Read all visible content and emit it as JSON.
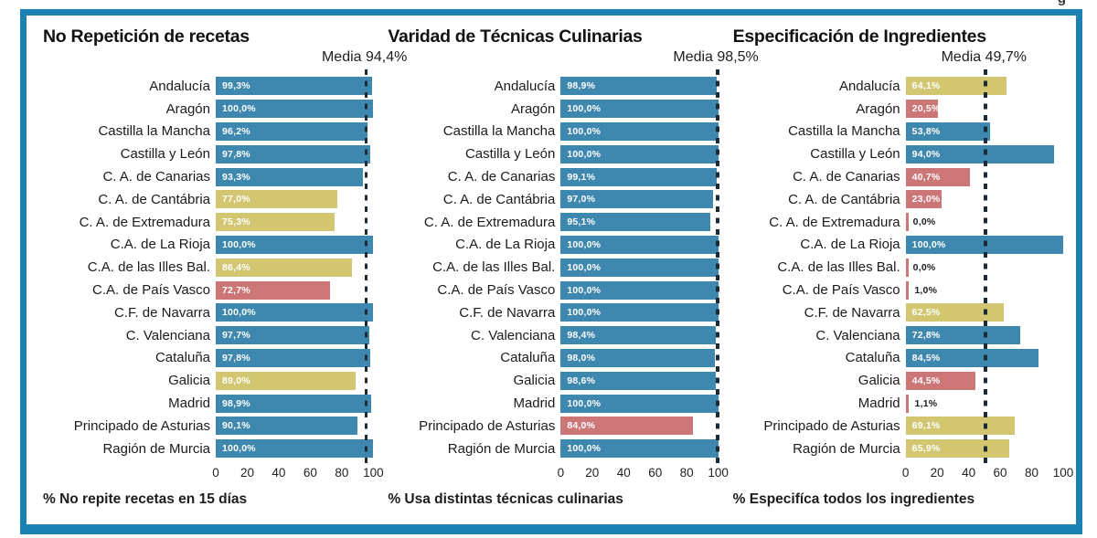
{
  "fragment": "g",
  "colors": {
    "frame_blue": "#1a81b2",
    "bar_blue": "#3e87ae",
    "bar_yellow": "#d2c671",
    "bar_red": "#cd7678",
    "dash_dark": "#1d2b36",
    "text_dark": "#1b1b1b"
  },
  "label_inside_threshold": 10,
  "chart_data": [
    {
      "type": "bar",
      "orientation": "horizontal",
      "title": "No Repetición de recetas",
      "media_label": "Media 94,4%",
      "media_value": 94.4,
      "xlabel": "% No repite recetas en 15 días",
      "xlim": [
        0,
        100
      ],
      "xticks": [
        0,
        20,
        40,
        60,
        80,
        100
      ],
      "grid": false,
      "categories": [
        "Andalucía",
        "Aragón",
        "Castilla la Mancha",
        "Castilla y León",
        "C. A. de Canarias",
        "C. A. de Cantábria",
        "C. A. de Extremadura",
        "C.A. de La Rioja",
        "C.A. de las Illes Bal.",
        "C.A. de País Vasco",
        "C.F. de Navarra",
        "C. Valenciana",
        "Cataluña",
        "Galicia",
        "Madrid",
        "Principado de Asturias",
        "Ragión de Murcia"
      ],
      "values": [
        99.3,
        100.0,
        96.2,
        97.8,
        93.3,
        77.0,
        75.3,
        100.0,
        86.4,
        72.7,
        100.0,
        97.7,
        97.8,
        89.0,
        98.9,
        90.1,
        100.0
      ],
      "value_labels": [
        "99,3%",
        "100,0%",
        "96,2%",
        "97,8%",
        "93,3%",
        "77,0%",
        "75,3%",
        "100,0%",
        "86,4%",
        "72,7%",
        "100,0%",
        "97,7%",
        "97,8%",
        "89,0%",
        "98,9%",
        "90,1%",
        "100,0%"
      ],
      "bar_colors": [
        "blue",
        "blue",
        "blue",
        "blue",
        "blue",
        "yellow",
        "yellow",
        "blue",
        "yellow",
        "red",
        "blue",
        "blue",
        "blue",
        "yellow",
        "blue",
        "blue",
        "blue"
      ]
    },
    {
      "type": "bar",
      "orientation": "horizontal",
      "title": "Varidad de Técnicas Culinarias",
      "media_label": "Media 98,5%",
      "media_value": 98.5,
      "xlabel": "% Usa distintas técnicas culinarias",
      "xlim": [
        0,
        100
      ],
      "xticks": [
        0,
        20,
        40,
        60,
        80,
        100
      ],
      "grid": false,
      "categories": [
        "Andalucía",
        "Aragón",
        "Castilla la Mancha",
        "Castilla y León",
        "C. A. de Canarias",
        "C. A. de Cantábria",
        "C. A. de Extremadura",
        "C.A. de La Rioja",
        "C.A. de las Illes Bal.",
        "C.A. de País Vasco",
        "C.F. de Navarra",
        "C. Valenciana",
        "Cataluña",
        "Galicia",
        "Madrid",
        "Principado de Asturias",
        "Ragión de Murcia"
      ],
      "values": [
        98.9,
        100.0,
        100.0,
        100.0,
        99.1,
        97.0,
        95.1,
        100.0,
        100.0,
        100.0,
        100.0,
        98.4,
        98.0,
        98.6,
        100.0,
        84.0,
        100.0
      ],
      "value_labels": [
        "98,9%",
        "100,0%",
        "100,0%",
        "100,0%",
        "99,1%",
        "97,0%",
        "95,1%",
        "100,0%",
        "100,0%",
        "100,0%",
        "100,0%",
        "98,4%",
        "98,0%",
        "98,6%",
        "100,0%",
        "84,0%",
        "100,0%"
      ],
      "bar_colors": [
        "blue",
        "blue",
        "blue",
        "blue",
        "blue",
        "blue",
        "blue",
        "blue",
        "blue",
        "blue",
        "blue",
        "blue",
        "blue",
        "blue",
        "blue",
        "red",
        "blue"
      ]
    },
    {
      "type": "bar",
      "orientation": "horizontal",
      "title": "Especificación de Ingredientes",
      "media_label": "Media 49,7%",
      "media_value": 49.7,
      "xlabel": "% Especifíca todos los ingredientes",
      "xlim": [
        0,
        100
      ],
      "xticks": [
        0,
        20,
        40,
        60,
        80,
        100
      ],
      "grid": false,
      "categories": [
        "Andalucía",
        "Aragón",
        "Castilla la Mancha",
        "Castilla y León",
        "C. A. de Canarias",
        "C. A. de Cantábria",
        "C. A. de Extremadura",
        "C.A. de La Rioja",
        "C.A. de las Illes Bal.",
        "C.A. de País Vasco",
        "C.F. de Navarra",
        "C. Valenciana",
        "Cataluña",
        "Galicia",
        "Madrid",
        "Principado de Asturias",
        "Ragión de Murcia"
      ],
      "values": [
        64.1,
        20.5,
        53.8,
        94.0,
        40.7,
        23.0,
        0.0,
        100.0,
        0.0,
        1.0,
        62.5,
        72.8,
        84.5,
        44.5,
        1.1,
        69.1,
        65.9
      ],
      "value_labels": [
        "64,1%",
        "20,5%",
        "53,8%",
        "94,0%",
        "40,7%",
        "23,0%",
        "0,0%",
        "100,0%",
        "0,0%",
        "1,0%",
        "62,5%",
        "72,8%",
        "84,5%",
        "44,5%",
        "1,1%",
        "69,1%",
        "65,9%"
      ],
      "bar_colors": [
        "yellow",
        "red",
        "blue",
        "blue",
        "red",
        "red",
        "red",
        "blue",
        "red",
        "red",
        "yellow",
        "blue",
        "blue",
        "red",
        "red",
        "yellow",
        "yellow"
      ]
    }
  ]
}
